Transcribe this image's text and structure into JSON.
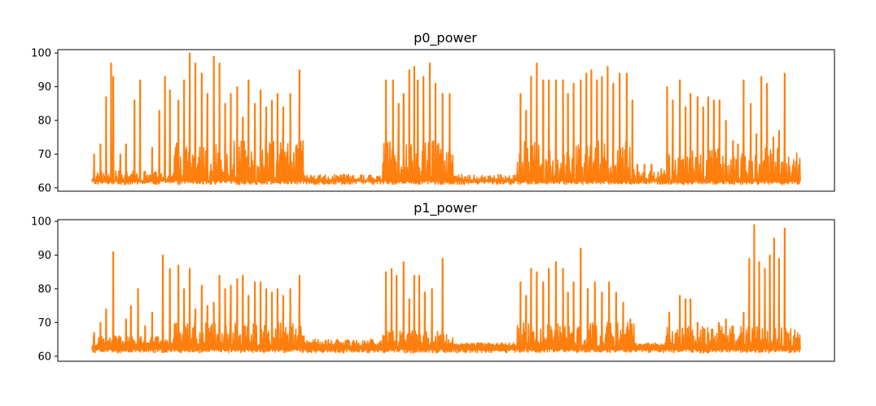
{
  "figure": {
    "background": "#ffffff",
    "series_color": "#ff7f0e"
  },
  "chart_data": [
    {
      "type": "line",
      "title": "p0_power",
      "xlabel": "",
      "ylabel": "",
      "ylim": [
        59,
        101
      ],
      "y_ticks": [
        60,
        70,
        80,
        90,
        100
      ],
      "x_ticks_visible": false,
      "grid": false,
      "series": [
        {
          "color": "#ff7f0e",
          "baseline": 62,
          "noise_floor": 61,
          "segments": [
            {
              "x_start": 0.0,
              "x_end": 0.115,
              "level": "low",
              "band_top": 65
            },
            {
              "x_start": 0.115,
              "x_end": 0.3,
              "level": "high",
              "band_top": 74
            },
            {
              "x_start": 0.3,
              "x_end": 0.41,
              "level": "idle",
              "band_top": 64
            },
            {
              "x_start": 0.41,
              "x_end": 0.51,
              "level": "high",
              "band_top": 74
            },
            {
              "x_start": 0.51,
              "x_end": 0.6,
              "level": "idle",
              "band_top": 64
            },
            {
              "x_start": 0.6,
              "x_end": 0.765,
              "level": "high",
              "band_top": 74
            },
            {
              "x_start": 0.765,
              "x_end": 0.81,
              "level": "low",
              "band_top": 66
            },
            {
              "x_start": 0.81,
              "x_end": 1.0,
              "level": "high",
              "band_top": 72
            }
          ],
          "peaks": [
            [
              0.003,
              70
            ],
            [
              0.012,
              73
            ],
            [
              0.02,
              87
            ],
            [
              0.027,
              97
            ],
            [
              0.03,
              93
            ],
            [
              0.04,
              70
            ],
            [
              0.048,
              73
            ],
            [
              0.06,
              86
            ],
            [
              0.068,
              92
            ],
            [
              0.085,
              72
            ],
            [
              0.095,
              83
            ],
            [
              0.103,
              93
            ],
            [
              0.11,
              89
            ],
            [
              0.122,
              86
            ],
            [
              0.13,
              92
            ],
            [
              0.138,
              100
            ],
            [
              0.146,
              97
            ],
            [
              0.155,
              94
            ],
            [
              0.163,
              88
            ],
            [
              0.172,
              99
            ],
            [
              0.18,
              97
            ],
            [
              0.188,
              85
            ],
            [
              0.196,
              88
            ],
            [
              0.205,
              90
            ],
            [
              0.213,
              81
            ],
            [
              0.221,
              92
            ],
            [
              0.23,
              85
            ],
            [
              0.238,
              89
            ],
            [
              0.246,
              84
            ],
            [
              0.254,
              86
            ],
            [
              0.262,
              88
            ],
            [
              0.27,
              84
            ],
            [
              0.28,
              88
            ],
            [
              0.293,
              95
            ],
            [
              0.415,
              92
            ],
            [
              0.425,
              92
            ],
            [
              0.433,
              85
            ],
            [
              0.44,
              88
            ],
            [
              0.448,
              95
            ],
            [
              0.455,
              96
            ],
            [
              0.46,
              92
            ],
            [
              0.468,
              93
            ],
            [
              0.477,
              97
            ],
            [
              0.485,
              91
            ],
            [
              0.495,
              88
            ],
            [
              0.505,
              88
            ],
            [
              0.605,
              88
            ],
            [
              0.613,
              83
            ],
            [
              0.62,
              93
            ],
            [
              0.628,
              97
            ],
            [
              0.637,
              92
            ],
            [
              0.645,
              92
            ],
            [
              0.655,
              92
            ],
            [
              0.665,
              92
            ],
            [
              0.672,
              88
            ],
            [
              0.68,
              91
            ],
            [
              0.69,
              92
            ],
            [
              0.698,
              94
            ],
            [
              0.705,
              95
            ],
            [
              0.713,
              92
            ],
            [
              0.72,
              93
            ],
            [
              0.728,
              96
            ],
            [
              0.736,
              91
            ],
            [
              0.745,
              94
            ],
            [
              0.755,
              94
            ],
            [
              0.763,
              86
            ],
            [
              0.77,
              67
            ],
            [
              0.78,
              67
            ],
            [
              0.79,
              67
            ],
            [
              0.812,
              90
            ],
            [
              0.82,
              86
            ],
            [
              0.83,
              92
            ],
            [
              0.838,
              84
            ],
            [
              0.845,
              88
            ],
            [
              0.855,
              87
            ],
            [
              0.863,
              84
            ],
            [
              0.87,
              87
            ],
            [
              0.878,
              86
            ],
            [
              0.886,
              86
            ],
            [
              0.895,
              80
            ],
            [
              0.905,
              74
            ],
            [
              0.912,
              73
            ],
            [
              0.92,
              92
            ],
            [
              0.93,
              85
            ],
            [
              0.938,
              76
            ],
            [
              0.945,
              93
            ],
            [
              0.953,
              91
            ],
            [
              0.962,
              75
            ],
            [
              0.97,
              77
            ],
            [
              0.978,
              94
            ]
          ]
        }
      ]
    },
    {
      "type": "line",
      "title": "p1_power",
      "xlabel": "",
      "ylabel": "",
      "ylim": [
        58.5,
        100.5
      ],
      "y_ticks": [
        60,
        70,
        80,
        90,
        100
      ],
      "x_ticks_visible": false,
      "grid": false,
      "series": [
        {
          "color": "#ff7f0e",
          "baseline": 63,
          "noise_floor": 61,
          "segments": [
            {
              "x_start": 0.0,
              "x_end": 0.115,
              "level": "low",
              "band_top": 66
            },
            {
              "x_start": 0.115,
              "x_end": 0.3,
              "level": "high",
              "band_top": 70
            },
            {
              "x_start": 0.3,
              "x_end": 0.41,
              "level": "idle",
              "band_top": 65
            },
            {
              "x_start": 0.41,
              "x_end": 0.51,
              "level": "high",
              "band_top": 68
            },
            {
              "x_start": 0.51,
              "x_end": 0.6,
              "level": "idle",
              "band_top": 64
            },
            {
              "x_start": 0.6,
              "x_end": 0.765,
              "level": "high",
              "band_top": 70
            },
            {
              "x_start": 0.765,
              "x_end": 0.81,
              "level": "low",
              "band_top": 64
            },
            {
              "x_start": 0.81,
              "x_end": 1.0,
              "level": "high",
              "band_top": 69
            }
          ],
          "peaks": [
            [
              0.003,
              67
            ],
            [
              0.012,
              70
            ],
            [
              0.02,
              74
            ],
            [
              0.03,
              91
            ],
            [
              0.038,
              66
            ],
            [
              0.048,
              71
            ],
            [
              0.055,
              75
            ],
            [
              0.065,
              80
            ],
            [
              0.075,
              69
            ],
            [
              0.085,
              73
            ],
            [
              0.1,
              90
            ],
            [
              0.11,
              86
            ],
            [
              0.122,
              87
            ],
            [
              0.13,
              80
            ],
            [
              0.138,
              86
            ],
            [
              0.146,
              74
            ],
            [
              0.155,
              81
            ],
            [
              0.163,
              75
            ],
            [
              0.172,
              76
            ],
            [
              0.18,
              84
            ],
            [
              0.188,
              80
            ],
            [
              0.196,
              81
            ],
            [
              0.205,
              83
            ],
            [
              0.213,
              84
            ],
            [
              0.221,
              78
            ],
            [
              0.23,
              82
            ],
            [
              0.238,
              82
            ],
            [
              0.246,
              80
            ],
            [
              0.254,
              79
            ],
            [
              0.262,
              80
            ],
            [
              0.27,
              78
            ],
            [
              0.28,
              80
            ],
            [
              0.293,
              84
            ],
            [
              0.415,
              85
            ],
            [
              0.423,
              86
            ],
            [
              0.43,
              84
            ],
            [
              0.44,
              88
            ],
            [
              0.448,
              77
            ],
            [
              0.455,
              84
            ],
            [
              0.462,
              84
            ],
            [
              0.47,
              79
            ],
            [
              0.48,
              80
            ],
            [
              0.495,
              89
            ],
            [
              0.605,
              82
            ],
            [
              0.613,
              78
            ],
            [
              0.62,
              86
            ],
            [
              0.628,
              85
            ],
            [
              0.637,
              82
            ],
            [
              0.645,
              86
            ],
            [
              0.655,
              88
            ],
            [
              0.665,
              86
            ],
            [
              0.672,
              79
            ],
            [
              0.68,
              82
            ],
            [
              0.69,
              92
            ],
            [
              0.7,
              80
            ],
            [
              0.71,
              82
            ],
            [
              0.72,
              79
            ],
            [
              0.73,
              82
            ],
            [
              0.74,
              79
            ],
            [
              0.75,
              76
            ],
            [
              0.76,
              71
            ],
            [
              0.815,
              73
            ],
            [
              0.83,
              78
            ],
            [
              0.838,
              77
            ],
            [
              0.845,
              77
            ],
            [
              0.855,
              70
            ],
            [
              0.865,
              68
            ],
            [
              0.875,
              68
            ],
            [
              0.885,
              70
            ],
            [
              0.895,
              71
            ],
            [
              0.905,
              69
            ],
            [
              0.92,
              73
            ],
            [
              0.928,
              89
            ],
            [
              0.935,
              99
            ],
            [
              0.942,
              88
            ],
            [
              0.95,
              86
            ],
            [
              0.957,
              90
            ],
            [
              0.963,
              95
            ],
            [
              0.97,
              89
            ],
            [
              0.978,
              98
            ]
          ]
        }
      ]
    }
  ]
}
